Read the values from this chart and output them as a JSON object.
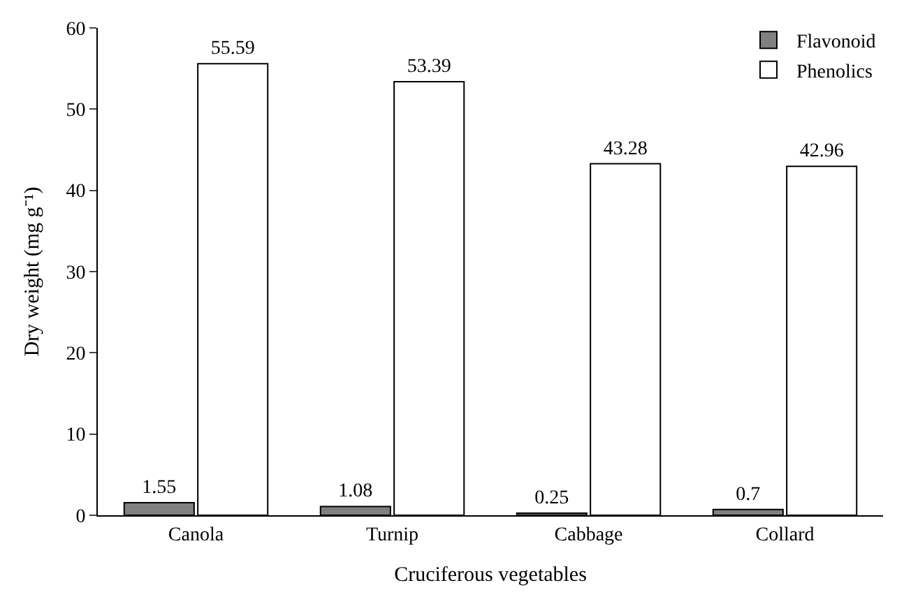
{
  "chart_data": {
    "type": "bar",
    "xlabel": "Cruciferous vegetables",
    "ylabel": "Dry weight (mg g⁻¹)",
    "categories": [
      "Canola",
      "Turnip",
      "Cabbage",
      "Collard"
    ],
    "series": [
      {
        "name": "Flavonoid",
        "color": "#808080",
        "values": [
          1.55,
          1.08,
          0.25,
          0.7
        ]
      },
      {
        "name": "Phenolics",
        "color": "#ffffff",
        "values": [
          55.59,
          53.39,
          43.28,
          42.96
        ]
      }
    ],
    "ylim": [
      0,
      60
    ],
    "yticks": [
      0,
      10,
      20,
      30,
      40,
      50,
      60
    ],
    "legend": "top right",
    "data_labels": true
  }
}
